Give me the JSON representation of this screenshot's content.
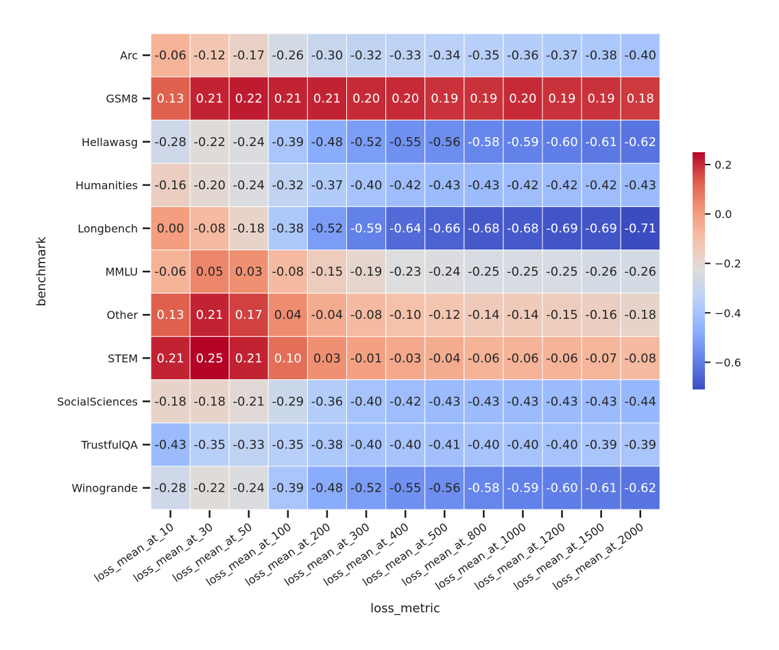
{
  "chart_data": {
    "type": "heatmap",
    "title": "",
    "xlabel": "loss_metric",
    "ylabel": "benchmark",
    "columns": [
      "loss_mean_at_10",
      "loss_mean_at_30",
      "loss_mean_at_50",
      "loss_mean_at_100",
      "loss_mean_at_200",
      "loss_mean_at_300",
      "loss_mean_at_400",
      "loss_mean_at_500",
      "loss_mean_at_800",
      "loss_mean_at_1000",
      "loss_mean_at_1200",
      "loss_mean_at_1500",
      "loss_mean_at_2000"
    ],
    "rows": [
      "Arc",
      "GSM8",
      "Hellawasg",
      "Humanities",
      "Longbench",
      "MMLU",
      "Other",
      "STEM",
      "SocialSciences",
      "TrustfulQA",
      "Winogrande"
    ],
    "values": [
      [
        -0.06,
        -0.12,
        -0.17,
        -0.26,
        -0.3,
        -0.32,
        -0.33,
        -0.34,
        -0.35,
        -0.36,
        -0.37,
        -0.38,
        -0.4
      ],
      [
        0.13,
        0.21,
        0.22,
        0.21,
        0.21,
        0.2,
        0.2,
        0.19,
        0.19,
        0.2,
        0.19,
        0.19,
        0.18
      ],
      [
        -0.28,
        -0.22,
        -0.24,
        -0.39,
        -0.48,
        -0.52,
        -0.55,
        -0.56,
        -0.58,
        -0.59,
        -0.6,
        -0.61,
        -0.62
      ],
      [
        -0.16,
        -0.2,
        -0.24,
        -0.32,
        -0.37,
        -0.4,
        -0.42,
        -0.43,
        -0.43,
        -0.42,
        -0.42,
        -0.42,
        -0.43
      ],
      [
        0.0,
        -0.08,
        -0.18,
        -0.38,
        -0.52,
        -0.59,
        -0.64,
        -0.66,
        -0.68,
        -0.68,
        -0.69,
        -0.69,
        -0.71
      ],
      [
        -0.06,
        0.05,
        0.03,
        -0.08,
        -0.15,
        -0.19,
        -0.23,
        -0.24,
        -0.25,
        -0.25,
        -0.25,
        -0.26,
        -0.26
      ],
      [
        0.13,
        0.21,
        0.17,
        0.04,
        -0.04,
        -0.08,
        -0.1,
        -0.12,
        -0.14,
        -0.14,
        -0.15,
        -0.16,
        -0.18
      ],
      [
        0.21,
        0.25,
        0.21,
        0.1,
        0.03,
        -0.01,
        -0.03,
        -0.04,
        -0.06,
        -0.06,
        -0.06,
        -0.07,
        -0.08
      ],
      [
        -0.18,
        -0.18,
        -0.21,
        -0.29,
        -0.36,
        -0.4,
        -0.42,
        -0.43,
        -0.43,
        -0.43,
        -0.43,
        -0.43,
        -0.44
      ],
      [
        -0.43,
        -0.35,
        -0.33,
        -0.35,
        -0.38,
        -0.4,
        -0.4,
        -0.41,
        -0.4,
        -0.4,
        -0.4,
        -0.39,
        -0.39
      ],
      [
        -0.28,
        -0.22,
        -0.24,
        -0.39,
        -0.48,
        -0.52,
        -0.55,
        -0.56,
        -0.58,
        -0.59,
        -0.6,
        -0.61,
        -0.62
      ]
    ],
    "colormap": "coolwarm",
    "vmin": -0.71,
    "vmax": 0.25,
    "colorbar_ticks": [
      0.2,
      0.0,
      -0.2,
      -0.4,
      -0.6
    ],
    "colorbar_tick_labels": [
      "0.2",
      "0.0",
      "−0.2",
      "−0.4",
      "−0.6"
    ],
    "legend": "right"
  }
}
